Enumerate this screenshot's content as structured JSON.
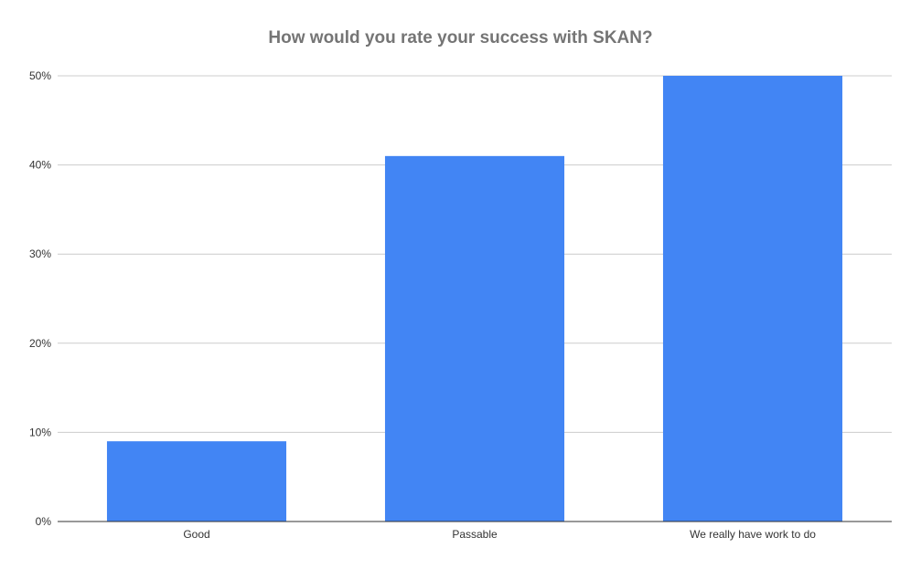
{
  "chart_data": {
    "type": "bar",
    "title": "How would you rate your success with SKAN?",
    "xlabel": "",
    "ylabel": "",
    "categories": [
      "Good",
      "Passable",
      "We really have work to do"
    ],
    "values": [
      9,
      41,
      50
    ],
    "ylim": [
      0,
      50
    ],
    "yticks": [
      0,
      10,
      20,
      30,
      40,
      50
    ],
    "ytick_labels": [
      "0%",
      "10%",
      "20%",
      "30%",
      "40%",
      "50%"
    ],
    "grid": true,
    "legend": "none",
    "bar_color": "#4285F4",
    "grid_color": "#cccccc",
    "axis_color": "#333333"
  }
}
